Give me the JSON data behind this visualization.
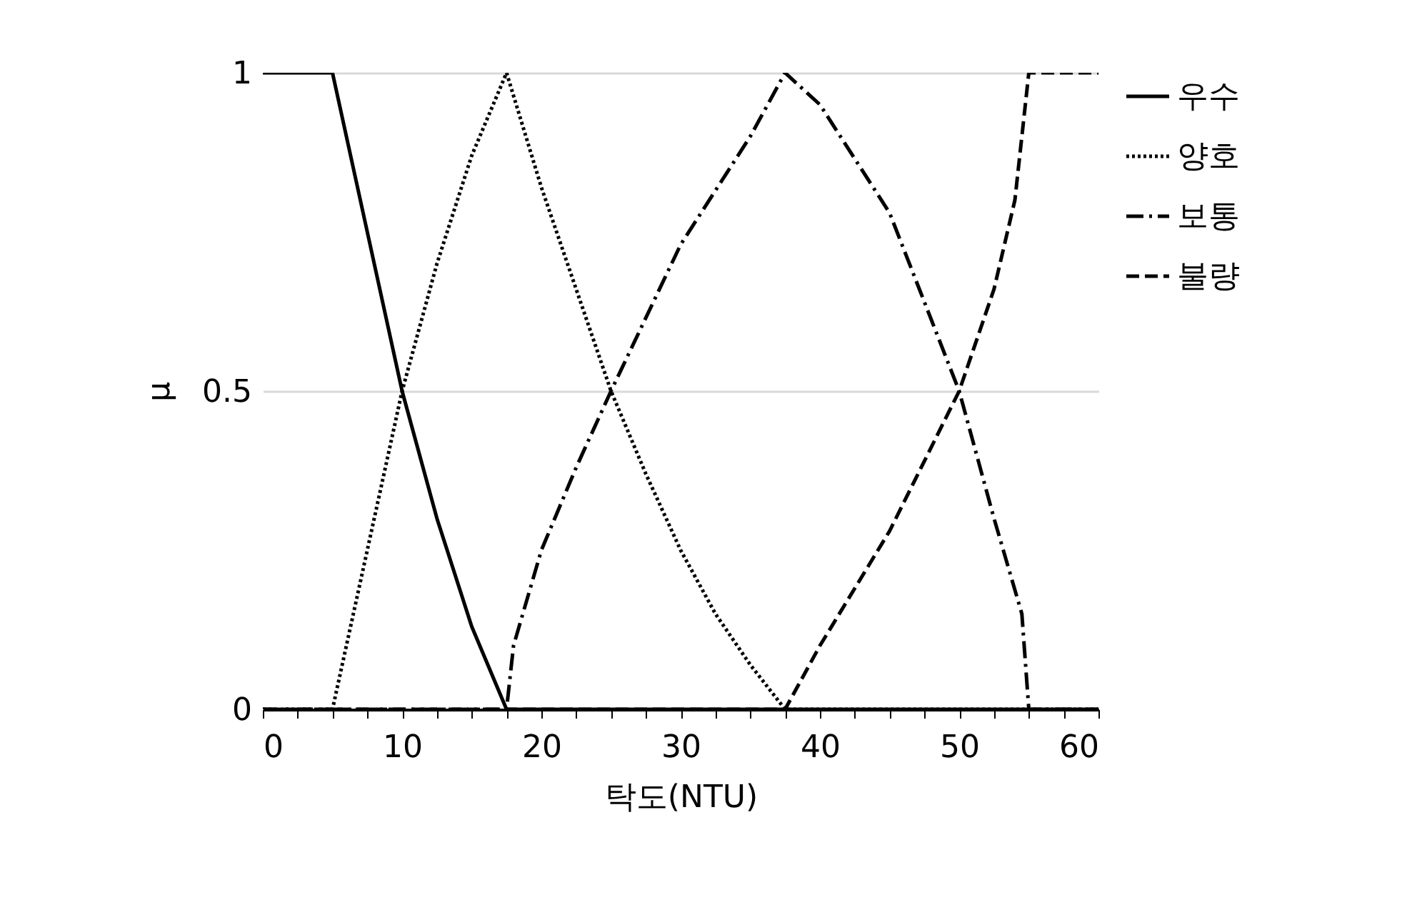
{
  "chart_data": {
    "type": "line",
    "xlabel": "탁도(NTU)",
    "ylabel": "μ",
    "xlim": [
      0,
      60
    ],
    "ylim": [
      0,
      1
    ],
    "xticks": [
      0,
      {
        "value": 2.5,
        "label": null
      },
      {
        "value": 5,
        "label": null
      },
      {
        "value": 7.5,
        "label": null
      },
      10,
      {
        "value": 12.5,
        "label": null
      },
      {
        "value": 15,
        "label": null
      },
      {
        "value": 17.5,
        "label": null
      },
      20,
      {
        "value": 22.5,
        "label": null
      },
      {
        "value": 25,
        "label": null
      },
      {
        "value": 27.5,
        "label": null
      },
      30,
      {
        "value": 32.5,
        "label": null
      },
      {
        "value": 35,
        "label": null
      },
      {
        "value": 37.5,
        "label": null
      },
      40,
      {
        "value": 42.5,
        "label": null
      },
      {
        "value": 45,
        "label": null
      },
      {
        "value": 47.5,
        "label": null
      },
      50,
      {
        "value": 52.5,
        "label": null
      },
      {
        "value": 55,
        "label": null
      },
      {
        "value": 57.5,
        "label": null
      },
      60
    ],
    "yticks": [
      0,
      0.5,
      1
    ],
    "grid": "y",
    "legend": "right",
    "marker": "none",
    "series": [
      {
        "name": "우수",
        "color": "#000000",
        "line_style": "solid",
        "x": [
          0,
          5,
          7.5,
          10,
          12.5,
          15,
          17.5,
          60
        ],
        "values": [
          1,
          1,
          0.75,
          0.5,
          0.3,
          0.13,
          0,
          0
        ]
      },
      {
        "name": "양호",
        "color": "#000000",
        "line_style": "dotted",
        "x": [
          0,
          5,
          7.5,
          10,
          12.5,
          15,
          17.5,
          20,
          22.5,
          25,
          27.5,
          30,
          32.5,
          35,
          37.5,
          60
        ],
        "values": [
          0,
          0,
          0.25,
          0.5,
          0.7,
          0.87,
          1,
          0.82,
          0.66,
          0.5,
          0.37,
          0.25,
          0.15,
          0.07,
          0,
          0
        ]
      },
      {
        "name": "보통",
        "color": "#000000",
        "line_style": "dashdot",
        "x": [
          0,
          17.5,
          18,
          20,
          22.5,
          25,
          30,
          35,
          37.5,
          40,
          45,
          50,
          52.5,
          54.5,
          55,
          60
        ],
        "values": [
          0,
          0,
          0.1,
          0.25,
          0.38,
          0.5,
          0.73,
          0.9,
          1,
          0.95,
          0.78,
          0.5,
          0.3,
          0.15,
          0,
          0
        ]
      },
      {
        "name": "불량",
        "color": "#000000",
        "line_style": "dashed",
        "x": [
          0,
          37.5,
          40,
          45,
          50,
          52.5,
          54,
          55,
          60
        ],
        "values": [
          0,
          0,
          0.1,
          0.28,
          0.5,
          0.66,
          0.8,
          1,
          1
        ]
      }
    ]
  }
}
